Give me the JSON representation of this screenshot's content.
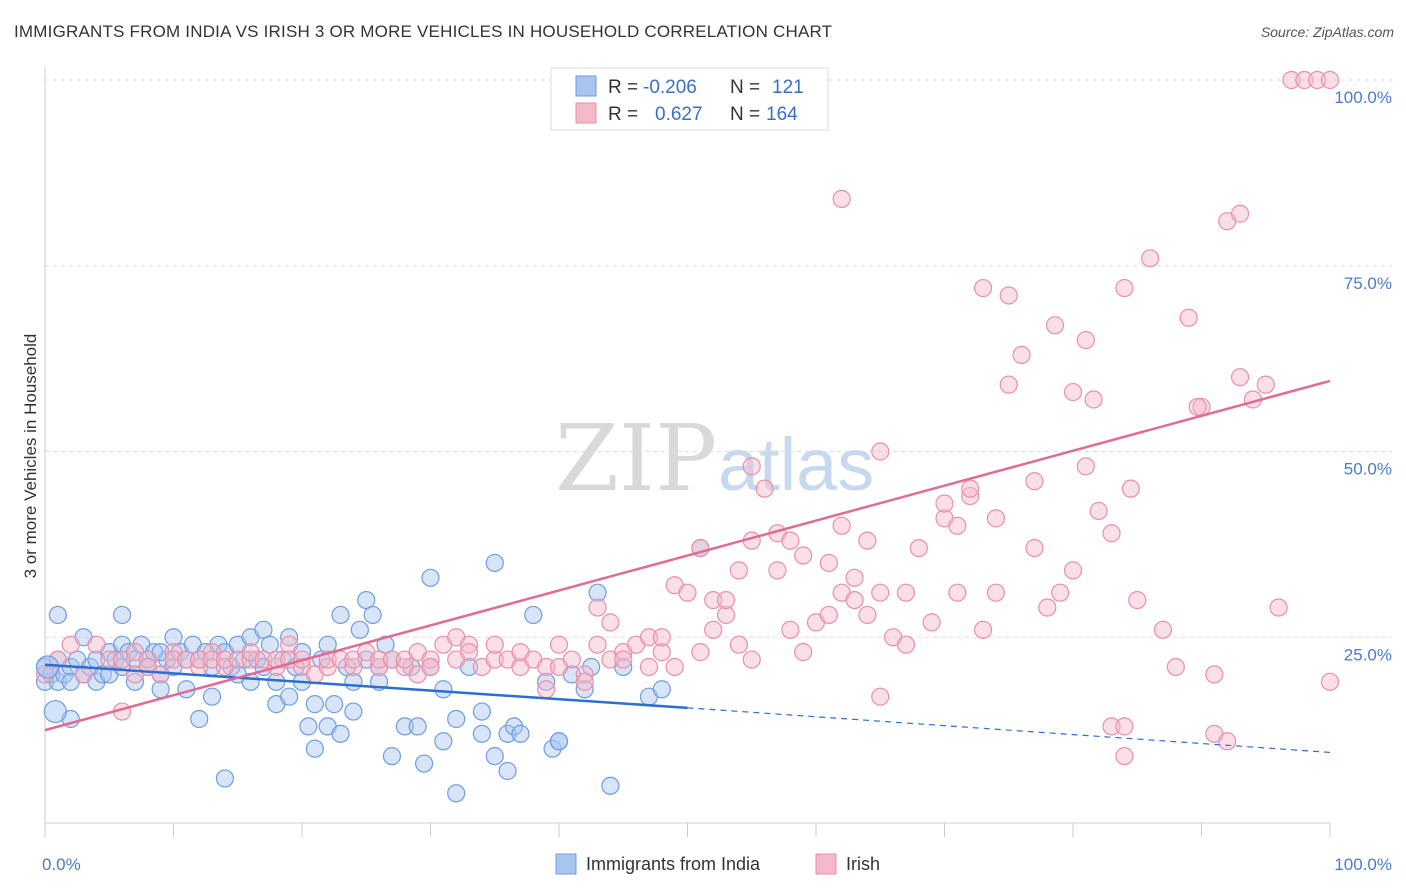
{
  "title": "IMMIGRANTS FROM INDIA VS IRISH 3 OR MORE VEHICLES IN HOUSEHOLD CORRELATION CHART",
  "source": "Source: ZipAtlas.com",
  "watermark": {
    "zip": "ZIP",
    "atlas": "atlas"
  },
  "chart_data": {
    "type": "scatter",
    "title": "IMMIGRANTS FROM INDIA VS IRISH 3 OR MORE VEHICLES IN HOUSEHOLD CORRELATION CHART",
    "xlabel": "",
    "ylabel": "3 or more Vehicles in Household",
    "xlim": [
      0,
      100
    ],
    "ylim": [
      0,
      100
    ],
    "x_tick_labels": [
      "0.0%",
      "100.0%"
    ],
    "y_ticks": [
      25,
      50,
      75,
      100
    ],
    "y_tick_labels": [
      "25.0%",
      "50.0%",
      "75.0%",
      "100.0%"
    ],
    "grid": "dashed horizontal",
    "legend_position": "top-center",
    "legend": [
      {
        "r_label": "R =",
        "r_value": "-0.206",
        "n_label": "N =",
        "n_value": "121"
      },
      {
        "r_label": "R =",
        "r_value": "0.627",
        "n_label": "N =",
        "n_value": "164"
      }
    ],
    "series": [
      {
        "name": "Immigrants from India",
        "color": "#6f9de0",
        "fill": "#a8c5ef",
        "trend": {
          "x0": 0,
          "y0": 21.3,
          "x1": 50,
          "y1": 15.5,
          "dash_to_x": 100,
          "dash_to_y": 9.5
        },
        "points": [
          [
            0,
            21
          ],
          [
            0,
            19
          ],
          [
            0.5,
            20
          ],
          [
            1,
            22
          ],
          [
            1,
            19
          ],
          [
            1.5,
            20
          ],
          [
            2,
            21
          ],
          [
            2,
            19
          ],
          [
            2.5,
            22
          ],
          [
            3,
            20
          ],
          [
            3.5,
            21
          ],
          [
            4,
            19
          ],
          [
            4,
            22
          ],
          [
            4.5,
            20
          ],
          [
            5,
            23
          ],
          [
            5,
            20
          ],
          [
            5.5,
            22
          ],
          [
            6,
            24
          ],
          [
            6,
            21
          ],
          [
            6.5,
            23
          ],
          [
            7,
            22
          ],
          [
            7,
            19
          ],
          [
            7.5,
            24
          ],
          [
            8,
            22
          ],
          [
            8,
            21
          ],
          [
            8.5,
            23
          ],
          [
            9,
            20
          ],
          [
            9,
            18
          ],
          [
            9.5,
            22
          ],
          [
            10,
            21
          ],
          [
            10,
            25
          ],
          [
            10.5,
            23
          ],
          [
            11,
            22
          ],
          [
            11,
            18
          ],
          [
            11.5,
            24
          ],
          [
            12,
            14
          ],
          [
            12,
            22
          ],
          [
            12.5,
            23
          ],
          [
            13,
            17
          ],
          [
            13,
            21
          ],
          [
            13.5,
            24
          ],
          [
            14,
            23
          ],
          [
            14,
            6
          ],
          [
            14.5,
            21
          ],
          [
            15,
            24
          ],
          [
            15,
            20
          ],
          [
            15.5,
            22
          ],
          [
            16,
            25
          ],
          [
            16,
            19
          ],
          [
            16.5,
            22
          ],
          [
            17,
            26
          ],
          [
            17,
            21
          ],
          [
            17.5,
            24
          ],
          [
            18,
            19
          ],
          [
            18,
            16
          ],
          [
            18.5,
            22
          ],
          [
            19,
            25
          ],
          [
            19,
            17
          ],
          [
            19.5,
            21
          ],
          [
            20,
            23
          ],
          [
            20,
            19
          ],
          [
            20.5,
            13
          ],
          [
            21,
            16
          ],
          [
            21,
            10
          ],
          [
            21.5,
            22
          ],
          [
            22,
            24
          ],
          [
            22,
            13
          ],
          [
            22.5,
            16
          ],
          [
            23,
            28
          ],
          [
            23,
            12
          ],
          [
            23.5,
            21
          ],
          [
            24,
            19
          ],
          [
            24,
            15
          ],
          [
            24.5,
            26
          ],
          [
            25,
            30
          ],
          [
            25,
            22
          ],
          [
            25.5,
            28
          ],
          [
            26,
            19
          ],
          [
            26,
            21
          ],
          [
            26.5,
            24
          ],
          [
            27,
            9
          ],
          [
            27,
            22
          ],
          [
            28,
            13
          ],
          [
            28.5,
            21
          ],
          [
            29,
            13
          ],
          [
            29.5,
            8
          ],
          [
            30,
            33
          ],
          [
            30,
            21
          ],
          [
            31,
            18
          ],
          [
            31,
            11
          ],
          [
            32,
            4
          ],
          [
            32,
            14
          ],
          [
            33,
            21
          ],
          [
            34,
            15
          ],
          [
            34,
            12
          ],
          [
            35,
            9
          ],
          [
            35,
            35
          ],
          [
            36,
            12
          ],
          [
            36,
            7
          ],
          [
            36.5,
            13
          ],
          [
            37,
            12
          ],
          [
            38,
            28
          ],
          [
            39,
            19
          ],
          [
            39.5,
            10
          ],
          [
            40,
            11
          ],
          [
            40,
            11
          ],
          [
            41,
            20
          ],
          [
            42,
            18
          ],
          [
            42.5,
            21
          ],
          [
            43,
            31
          ],
          [
            44,
            5
          ],
          [
            45,
            21
          ],
          [
            47,
            17
          ],
          [
            48,
            18
          ],
          [
            51,
            37
          ],
          [
            1,
            28
          ],
          [
            2,
            14
          ],
          [
            3,
            25
          ],
          [
            6,
            28
          ],
          [
            9,
            23
          ]
        ]
      },
      {
        "name": "Irish",
        "color": "#e890a8",
        "fill": "#f5b8c9",
        "trend": {
          "x0": 0,
          "y0": 12.5,
          "x1": 100,
          "y1": 59.5
        },
        "points": [
          [
            0,
            20
          ],
          [
            1,
            22
          ],
          [
            2,
            24
          ],
          [
            3,
            20
          ],
          [
            4,
            24
          ],
          [
            5,
            22
          ],
          [
            6,
            22
          ],
          [
            6,
            15
          ],
          [
            7,
            23
          ],
          [
            7,
            20
          ],
          [
            8,
            22
          ],
          [
            8,
            21
          ],
          [
            9,
            20
          ],
          [
            10,
            23
          ],
          [
            10,
            22
          ],
          [
            11,
            22
          ],
          [
            12,
            21
          ],
          [
            12,
            22
          ],
          [
            13,
            23
          ],
          [
            13,
            22
          ],
          [
            14,
            21
          ],
          [
            14,
            22
          ],
          [
            15,
            22
          ],
          [
            16,
            22
          ],
          [
            16,
            23
          ],
          [
            17,
            22
          ],
          [
            18,
            21
          ],
          [
            18,
            22
          ],
          [
            19,
            24
          ],
          [
            19,
            22
          ],
          [
            20,
            21
          ],
          [
            20,
            22
          ],
          [
            21,
            20
          ],
          [
            22,
            21
          ],
          [
            22,
            22
          ],
          [
            23,
            22
          ],
          [
            24,
            21
          ],
          [
            24,
            22
          ],
          [
            25,
            23
          ],
          [
            26,
            21
          ],
          [
            26,
            22
          ],
          [
            27,
            22
          ],
          [
            28,
            21
          ],
          [
            28,
            22
          ],
          [
            29,
            20
          ],
          [
            29,
            23
          ],
          [
            30,
            22
          ],
          [
            30,
            21
          ],
          [
            31,
            24
          ],
          [
            32,
            22
          ],
          [
            32,
            25
          ],
          [
            33,
            24
          ],
          [
            33,
            23
          ],
          [
            34,
            21
          ],
          [
            35,
            22
          ],
          [
            35,
            24
          ],
          [
            36,
            22
          ],
          [
            37,
            21
          ],
          [
            37,
            23
          ],
          [
            38,
            22
          ],
          [
            39,
            21
          ],
          [
            39,
            18
          ],
          [
            40,
            21
          ],
          [
            40,
            24
          ],
          [
            41,
            22
          ],
          [
            42,
            20
          ],
          [
            42,
            19
          ],
          [
            43,
            24
          ],
          [
            43,
            29
          ],
          [
            44,
            22
          ],
          [
            44,
            27
          ],
          [
            45,
            23
          ],
          [
            45,
            22
          ],
          [
            46,
            24
          ],
          [
            47,
            21
          ],
          [
            47,
            25
          ],
          [
            48,
            23
          ],
          [
            48,
            25
          ],
          [
            49,
            21
          ],
          [
            49,
            32
          ],
          [
            50,
            31
          ],
          [
            51,
            37
          ],
          [
            51,
            23
          ],
          [
            52,
            26
          ],
          [
            52,
            30
          ],
          [
            53,
            28
          ],
          [
            53,
            30
          ],
          [
            54,
            34
          ],
          [
            54,
            24
          ],
          [
            55,
            22
          ],
          [
            55,
            38
          ],
          [
            55,
            48
          ],
          [
            56,
            45
          ],
          [
            57,
            39
          ],
          [
            57,
            34
          ],
          [
            58,
            26
          ],
          [
            58,
            38
          ],
          [
            59,
            36
          ],
          [
            59,
            23
          ],
          [
            60,
            27
          ],
          [
            61,
            28
          ],
          [
            61,
            35
          ],
          [
            62,
            31
          ],
          [
            62,
            40
          ],
          [
            63,
            30
          ],
          [
            63,
            33
          ],
          [
            64,
            28
          ],
          [
            64,
            38
          ],
          [
            65,
            31
          ],
          [
            65,
            50
          ],
          [
            65,
            17
          ],
          [
            66,
            25
          ],
          [
            67,
            24
          ],
          [
            67,
            31
          ],
          [
            68,
            37
          ],
          [
            69,
            27
          ],
          [
            70,
            41
          ],
          [
            70,
            43
          ],
          [
            71,
            31
          ],
          [
            71,
            40
          ],
          [
            72,
            44
          ],
          [
            72,
            45
          ],
          [
            73,
            26
          ],
          [
            74,
            31
          ],
          [
            75,
            59
          ],
          [
            75,
            71
          ],
          [
            76,
            63
          ],
          [
            77,
            46
          ],
          [
            77,
            37
          ],
          [
            78,
            29
          ],
          [
            79,
            31
          ],
          [
            80,
            34
          ],
          [
            80,
            58
          ],
          [
            81,
            48
          ],
          [
            81,
            65
          ],
          [
            82,
            42
          ],
          [
            83,
            39
          ],
          [
            83,
            13
          ],
          [
            84,
            72
          ],
          [
            84,
            9
          ],
          [
            85,
            30
          ],
          [
            86,
            76
          ],
          [
            87,
            26
          ],
          [
            88,
            21
          ],
          [
            89,
            68
          ],
          [
            90,
            56
          ],
          [
            91,
            20
          ],
          [
            92,
            81
          ],
          [
            92,
            11
          ],
          [
            93,
            60
          ],
          [
            93,
            82
          ],
          [
            94,
            57
          ],
          [
            95,
            59
          ],
          [
            96,
            29
          ],
          [
            97,
            100
          ],
          [
            98,
            100
          ],
          [
            99,
            100
          ],
          [
            100,
            100
          ],
          [
            100,
            19
          ],
          [
            84.5,
            45
          ],
          [
            74,
            41
          ],
          [
            81.6,
            57
          ],
          [
            89.7,
            56
          ],
          [
            78.6,
            67
          ],
          [
            62,
            84
          ],
          [
            73,
            72
          ],
          [
            84,
            13
          ],
          [
            91,
            12
          ]
        ]
      }
    ]
  },
  "bottom_legend": [
    {
      "label": "Immigrants from India"
    },
    {
      "label": "Irish"
    }
  ]
}
